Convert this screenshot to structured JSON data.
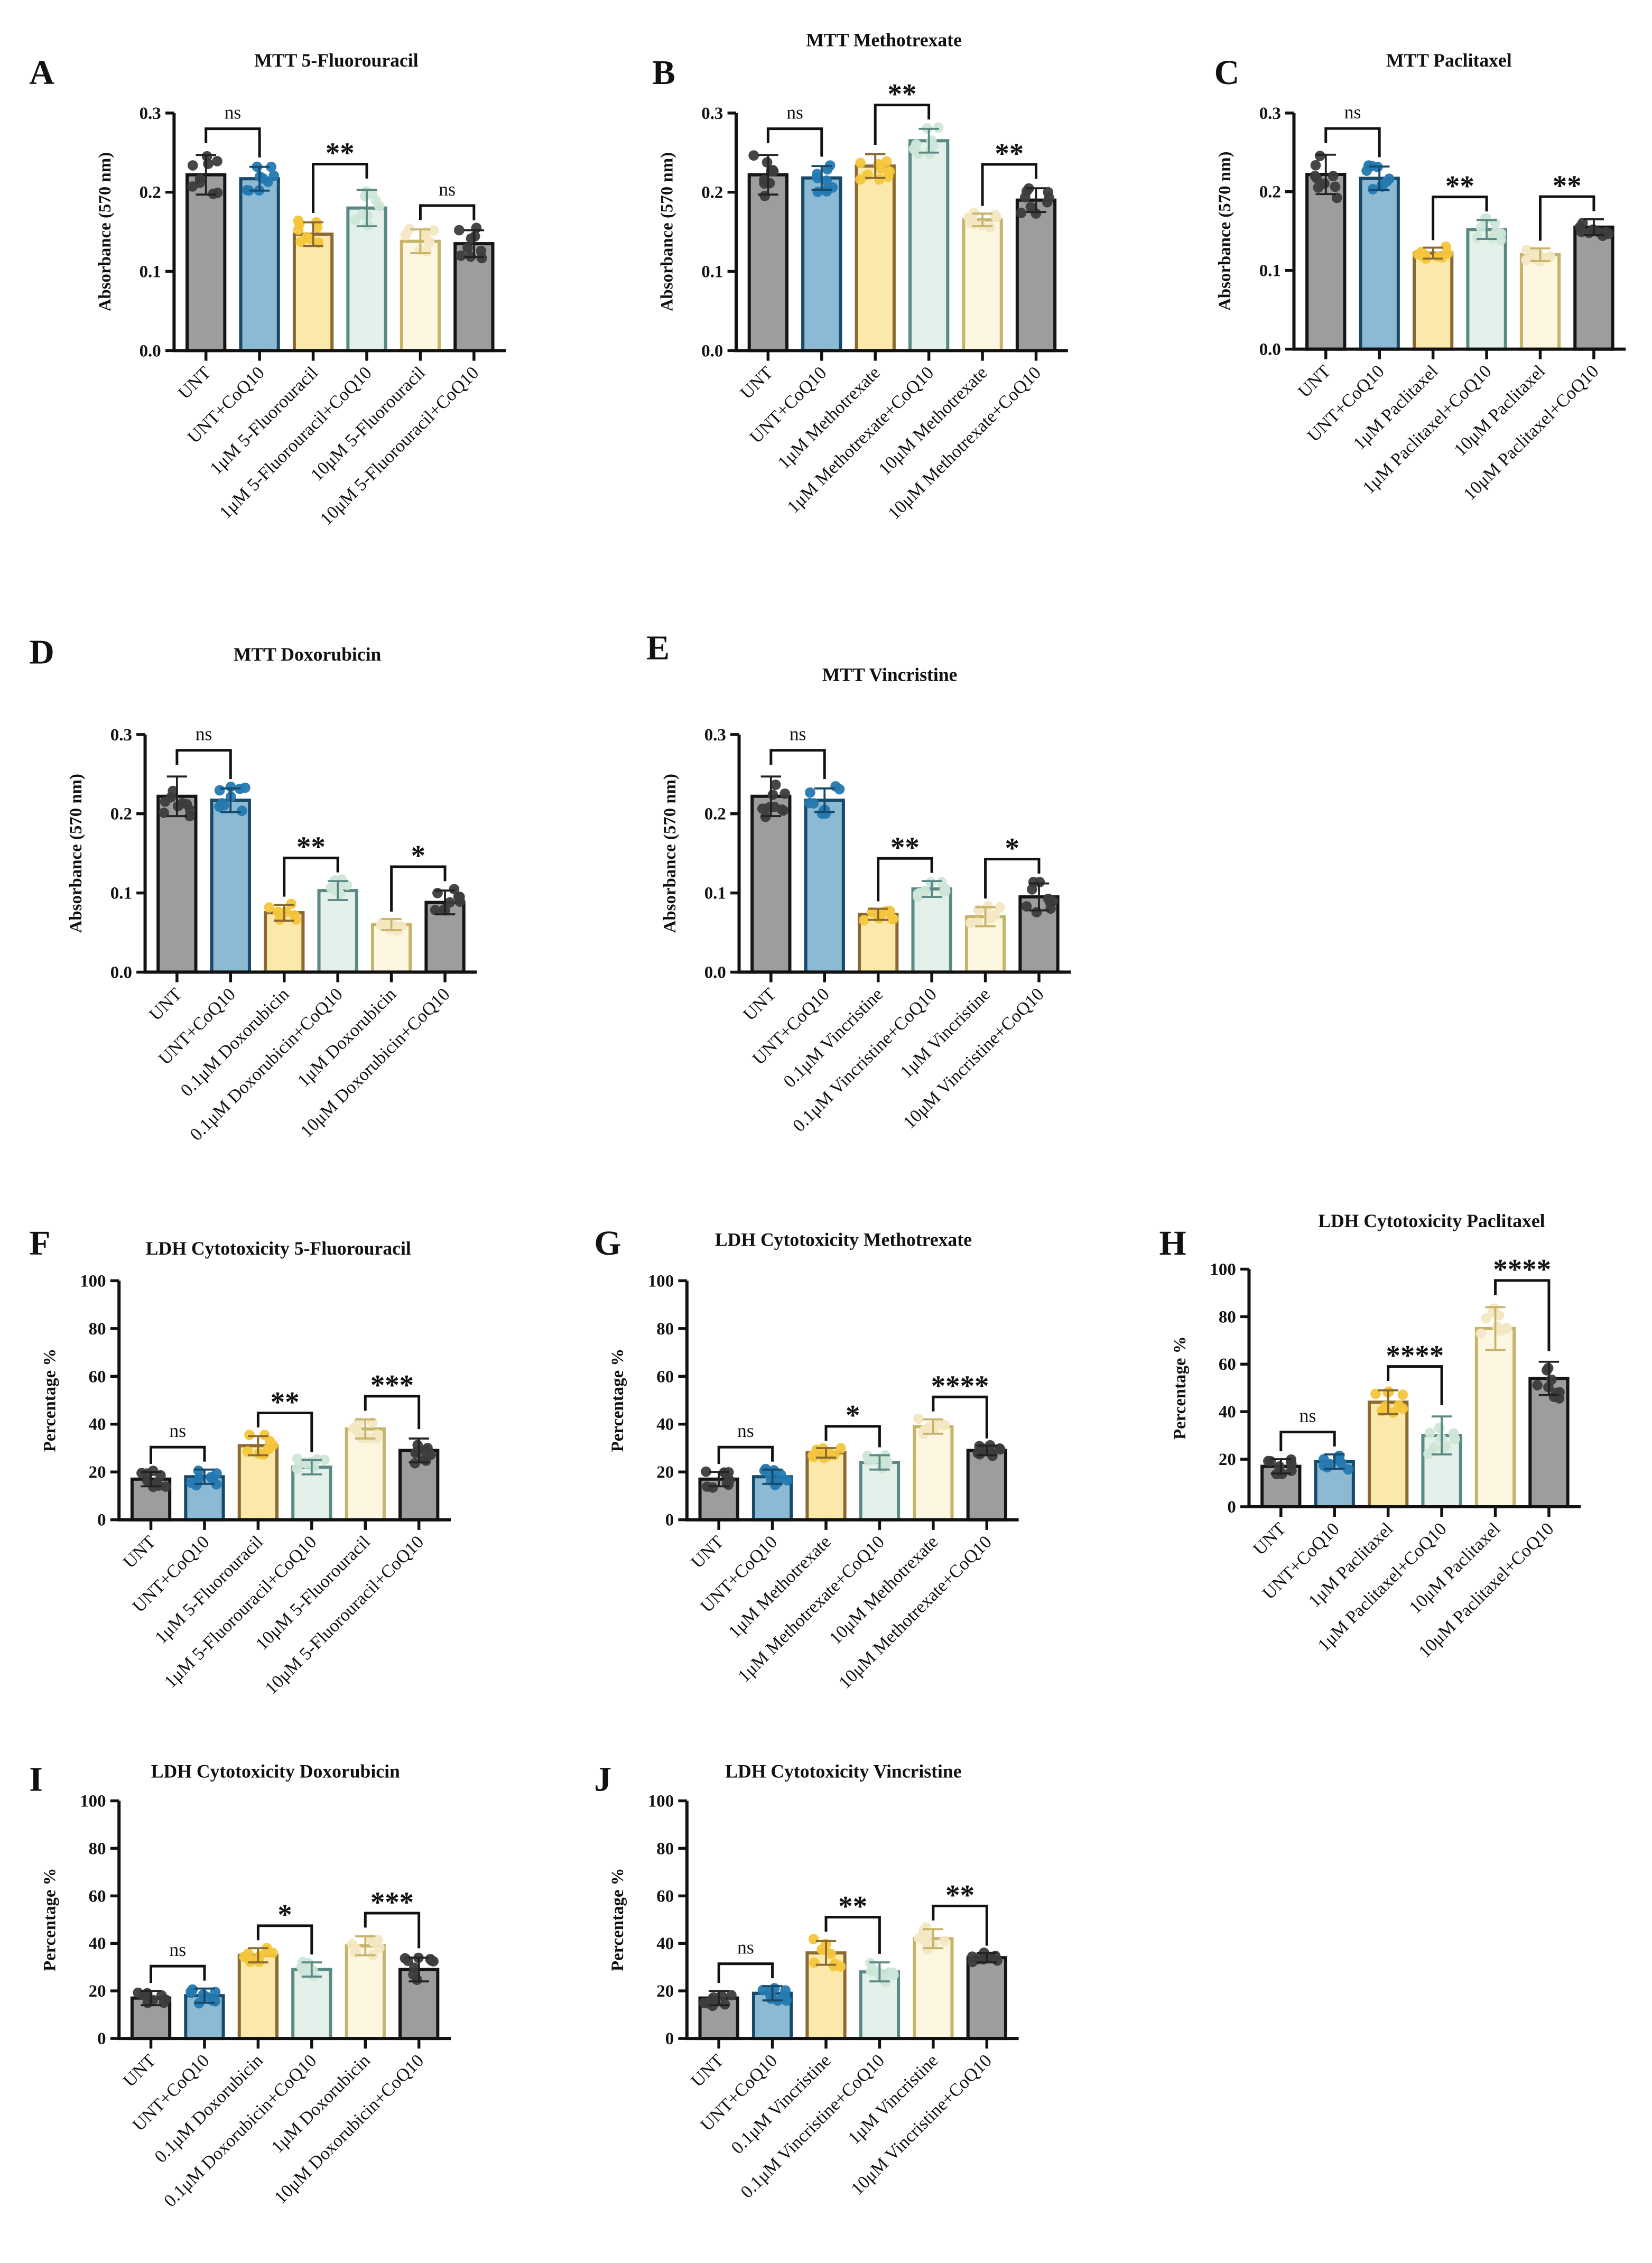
{
  "colors": {
    "fills": [
      "#9d9d9d",
      "#8cb9d3",
      "#fbe8ab",
      "#e4f1ea",
      "#fdf6e0",
      "#9d9d9d"
    ],
    "borders": [
      "#151515",
      "#17496a",
      "#8a6a30",
      "#5b8985",
      "#c6b46a",
      "#151515"
    ],
    "dots": [
      "#3c3c3c",
      "#2479b0",
      "#f4c63c",
      "#cde6d8",
      "#f3e8c3",
      "#3c3c3c"
    ]
  },
  "chart_data": [
    {
      "letter": "A",
      "type": "bar",
      "title": "MTT 5-Fluorouracil",
      "ylabel": "Absorbance (570 nm)",
      "ylim": [
        0,
        0.3
      ],
      "yticks": [
        "0.0",
        "0.1",
        "0.2",
        "0.3"
      ],
      "tick_values": [
        0,
        0.1,
        0.2,
        0.3
      ],
      "categories": [
        "UNT",
        "UNT+CoQ10",
        "1μM 5-Fluorouracil",
        "1μM 5-Fluorouracil+CoQ10",
        "10μM 5-Fluorouracil",
        "10μM 5-Fluorouracil+CoQ10"
      ],
      "values": [
        0.222,
        0.217,
        0.147,
        0.18,
        0.138,
        0.135
      ],
      "sd": [
        0.025,
        0.015,
        0.015,
        0.023,
        0.015,
        0.017
      ],
      "significance": [
        {
          "pair": [
            0,
            1
          ],
          "label": "ns"
        },
        {
          "pair": [
            2,
            3
          ],
          "label": "**"
        },
        {
          "pair": [
            4,
            5
          ],
          "label": "ns"
        }
      ]
    },
    {
      "letter": "B",
      "type": "bar",
      "title": "MTT Methotrexate",
      "ylabel": "Absorbance (570 nm)",
      "ylim": [
        0,
        0.3
      ],
      "yticks": [
        "0.0",
        "0.1",
        "0.2",
        "0.3"
      ],
      "tick_values": [
        0,
        0.1,
        0.2,
        0.3
      ],
      "categories": [
        "UNT",
        "UNT+CoQ10",
        "1μM Methotrexate",
        "1μM Methotrexate+CoQ10",
        "10μM Methotrexate",
        "10μM Methotrexate+CoQ10"
      ],
      "values": [
        0.222,
        0.218,
        0.233,
        0.265,
        0.165,
        0.19
      ],
      "sd": [
        0.025,
        0.015,
        0.015,
        0.015,
        0.008,
        0.015
      ],
      "significance": [
        {
          "pair": [
            0,
            1
          ],
          "label": "ns"
        },
        {
          "pair": [
            2,
            3
          ],
          "label": "**"
        },
        {
          "pair": [
            4,
            5
          ],
          "label": "**"
        }
      ]
    },
    {
      "letter": "C",
      "type": "bar",
      "title": "MTT Paclitaxel",
      "ylabel": "Absorbance (570 nm)",
      "ylim": [
        0,
        0.3
      ],
      "yticks": [
        "0.0",
        "0.1",
        "0.2",
        "0.3"
      ],
      "tick_values": [
        0,
        0.1,
        0.2,
        0.3
      ],
      "categories": [
        "UNT",
        "UNT+CoQ10",
        "1μM Paclitaxel",
        "1μM Paclitaxel+CoQ10",
        "10μM Paclitaxel",
        "10μM Paclitaxel+CoQ10"
      ],
      "values": [
        0.222,
        0.217,
        0.122,
        0.152,
        0.12,
        0.155
      ],
      "sd": [
        0.025,
        0.015,
        0.007,
        0.012,
        0.008,
        0.01
      ],
      "significance": [
        {
          "pair": [
            0,
            1
          ],
          "label": "ns"
        },
        {
          "pair": [
            2,
            3
          ],
          "label": "**"
        },
        {
          "pair": [
            4,
            5
          ],
          "label": "**"
        }
      ]
    },
    {
      "letter": "D",
      "type": "bar",
      "title": "MTT Doxorubicin",
      "ylabel": "Absorbance (570 nm)",
      "ylim": [
        0,
        0.3
      ],
      "yticks": [
        "0.0",
        "0.1",
        "0.2",
        "0.3"
      ],
      "tick_values": [
        0,
        0.1,
        0.2,
        0.3
      ],
      "categories": [
        "UNT",
        "UNT+CoQ10",
        "0.1μM Doxorubicin",
        "0.1μM Doxorubicin+CoQ10",
        "1μM Doxorubicin",
        "10μM Doxorubicin+CoQ10"
      ],
      "values": [
        0.222,
        0.217,
        0.075,
        0.103,
        0.06,
        0.088
      ],
      "sd": [
        0.025,
        0.015,
        0.01,
        0.012,
        0.007,
        0.015
      ],
      "significance": [
        {
          "pair": [
            0,
            1
          ],
          "label": "ns"
        },
        {
          "pair": [
            2,
            3
          ],
          "label": "**"
        },
        {
          "pair": [
            4,
            5
          ],
          "label": "*"
        }
      ]
    },
    {
      "letter": "E",
      "type": "bar",
      "title": "MTT Vincristine",
      "ylabel": "Absorbance (570 nm)",
      "ylim": [
        0,
        0.3
      ],
      "yticks": [
        "0.0",
        "0.1",
        "0.2",
        "0.3"
      ],
      "tick_values": [
        0,
        0.1,
        0.2,
        0.3
      ],
      "categories": [
        "UNT",
        "UNT+CoQ10",
        "0.1μM Vincristine",
        "0.1μM Vincristine+CoQ10",
        "1μM Vincristine",
        "10μM Vincristine+CoQ10"
      ],
      "values": [
        0.222,
        0.217,
        0.073,
        0.105,
        0.07,
        0.095
      ],
      "sd": [
        0.025,
        0.015,
        0.007,
        0.01,
        0.012,
        0.017
      ],
      "significance": [
        {
          "pair": [
            0,
            1
          ],
          "label": "ns"
        },
        {
          "pair": [
            2,
            3
          ],
          "label": "**"
        },
        {
          "pair": [
            4,
            5
          ],
          "label": "*"
        }
      ]
    },
    {
      "letter": "F",
      "type": "bar",
      "title": "LDH Cytotoxicity 5-Fluorouracil",
      "ylabel": "Percentage %",
      "ylim": [
        0,
        100
      ],
      "yticks": [
        "0",
        "20",
        "40",
        "60",
        "80",
        "100"
      ],
      "tick_values": [
        0,
        20,
        40,
        60,
        80,
        100
      ],
      "categories": [
        "UNT",
        "UNT+CoQ10",
        "1μM 5-Fluorouracil",
        "1μM 5-Fluorouracil+CoQ10",
        "10μM 5-Fluorouracil",
        "10μM 5-Fluorouracil+CoQ10"
      ],
      "values": [
        17,
        18,
        31,
        22,
        38,
        29
      ],
      "sd": [
        3,
        3,
        4,
        3,
        4,
        5
      ],
      "significance": [
        {
          "pair": [
            0,
            1
          ],
          "label": "ns"
        },
        {
          "pair": [
            2,
            3
          ],
          "label": "**"
        },
        {
          "pair": [
            4,
            5
          ],
          "label": "***"
        }
      ]
    },
    {
      "letter": "G",
      "type": "bar",
      "title": "LDH Cytotoxicity Methotrexate",
      "ylabel": "Percentage %",
      "ylim": [
        0,
        100
      ],
      "yticks": [
        "0",
        "20",
        "40",
        "60",
        "80",
        "100"
      ],
      "tick_values": [
        0,
        20,
        40,
        60,
        80,
        100
      ],
      "categories": [
        "UNT",
        "UNT+CoQ10",
        "1μM Methotrexate",
        "1μM Methotrexate+CoQ10",
        "10μM Methotrexate",
        "10μM Methotrexate+CoQ10"
      ],
      "values": [
        17,
        18,
        28,
        24,
        39,
        29
      ],
      "sd": [
        3,
        3,
        2,
        3,
        3,
        2
      ],
      "significance": [
        {
          "pair": [
            0,
            1
          ],
          "label": "ns"
        },
        {
          "pair": [
            2,
            3
          ],
          "label": "*"
        },
        {
          "pair": [
            4,
            5
          ],
          "label": "****"
        }
      ]
    },
    {
      "letter": "H",
      "type": "bar",
      "title": "LDH Cytotoxicity Paclitaxel",
      "ylabel": "Percentage %",
      "ylim": [
        0,
        100
      ],
      "yticks": [
        "0",
        "20",
        "40",
        "60",
        "80",
        "100"
      ],
      "tick_values": [
        0,
        20,
        40,
        60,
        80,
        100
      ],
      "categories": [
        "UNT",
        "UNT+CoQ10",
        "1μM Paclitaxel",
        "1μM Paclitaxel+CoQ10",
        "10μM Paclitaxel",
        "10μM Paclitaxel+CoQ10"
      ],
      "values": [
        17,
        19,
        44,
        30,
        75,
        54
      ],
      "sd": [
        3,
        3,
        5,
        8,
        9,
        7
      ],
      "significance": [
        {
          "pair": [
            0,
            1
          ],
          "label": "ns"
        },
        {
          "pair": [
            2,
            3
          ],
          "label": "****"
        },
        {
          "pair": [
            4,
            5
          ],
          "label": "****"
        }
      ]
    },
    {
      "letter": "I",
      "type": "bar",
      "title": "LDH Cytotoxicity Doxorubicin",
      "ylabel": "Percentage %",
      "ylim": [
        0,
        100
      ],
      "yticks": [
        "0",
        "20",
        "40",
        "60",
        "80",
        "100"
      ],
      "tick_values": [
        0,
        20,
        40,
        60,
        80,
        100
      ],
      "categories": [
        "UNT",
        "UNT+CoQ10",
        "0.1μM Doxorubicin",
        "0.1μM Doxorubicin+CoQ10",
        "1μM Doxorubicin",
        "10μM Doxorubicin+CoQ10"
      ],
      "values": [
        17,
        18,
        35,
        29,
        39,
        29
      ],
      "sd": [
        3,
        3,
        3,
        3,
        4,
        5
      ],
      "significance": [
        {
          "pair": [
            0,
            1
          ],
          "label": "ns"
        },
        {
          "pair": [
            2,
            3
          ],
          "label": "*"
        },
        {
          "pair": [
            4,
            5
          ],
          "label": "***"
        }
      ]
    },
    {
      "letter": "J",
      "type": "bar",
      "title": "LDH Cytotoxicity Vincristine",
      "ylabel": "Percentage %",
      "ylim": [
        0,
        100
      ],
      "yticks": [
        "0",
        "20",
        "40",
        "60",
        "80",
        "100"
      ],
      "tick_values": [
        0,
        20,
        40,
        60,
        80,
        100
      ],
      "categories": [
        "UNT",
        "UNT+CoQ10",
        "0.1μM Vincristine",
        "0.1μM Vincristine+CoQ10",
        "1μM Vincristine",
        "10μM Vincristine+CoQ10"
      ],
      "values": [
        17,
        19,
        36,
        28,
        42,
        34
      ],
      "sd": [
        3,
        3,
        5,
        4,
        4,
        2
      ],
      "significance": [
        {
          "pair": [
            0,
            1
          ],
          "label": "ns"
        },
        {
          "pair": [
            2,
            3
          ],
          "label": "**"
        },
        {
          "pair": [
            4,
            5
          ],
          "label": "**"
        }
      ]
    }
  ]
}
